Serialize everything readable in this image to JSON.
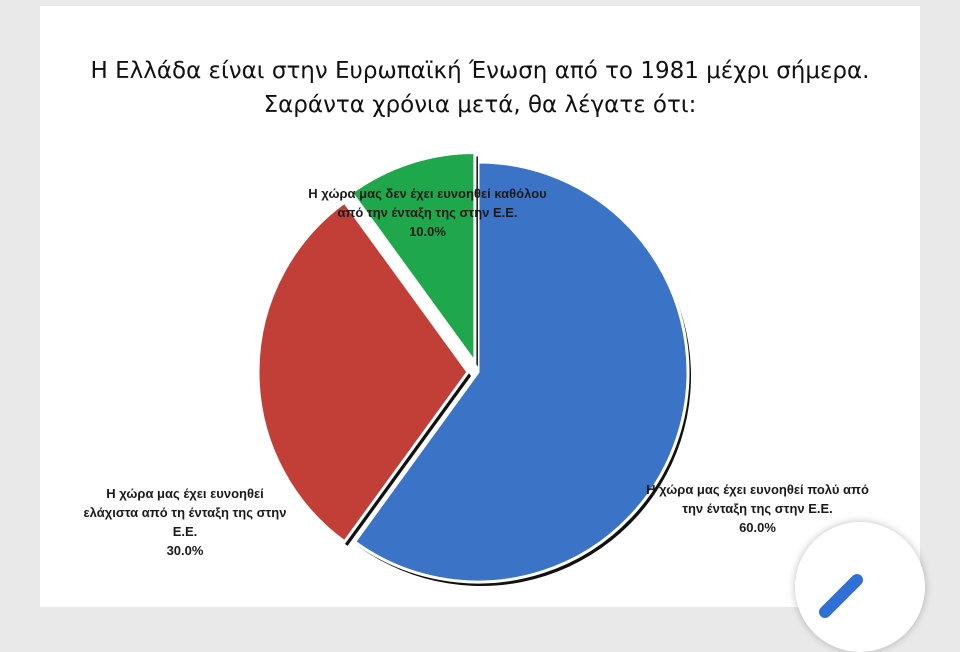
{
  "chart_data": {
    "type": "pie",
    "title": "Η Ελλάδα είναι στην Ευρωπαϊκή Ένωση από το 1981 μέχρι σήμερα. Σαράντα χρόνια μετά, θα λέγατε ότι:",
    "categories": [
      "Η χώρα μας έχει ευνοηθεί πολύ από την ένταξη της στην Ε.Ε.",
      "Η χώρα μας έχει ευνοηθεί ελάχιστα από τη ένταξη της στην Ε.Ε.",
      "Η χώρα μας δεν έχει ευνοηθεί καθόλου από την ένταξη της στην Ε.Ε."
    ],
    "values": [
      60,
      30,
      10
    ],
    "value_labels": [
      "60.0%",
      "30.0%",
      "10.0%"
    ],
    "colors": [
      "#3b74c6",
      "#c23f38",
      "#1fa84b"
    ]
  }
}
